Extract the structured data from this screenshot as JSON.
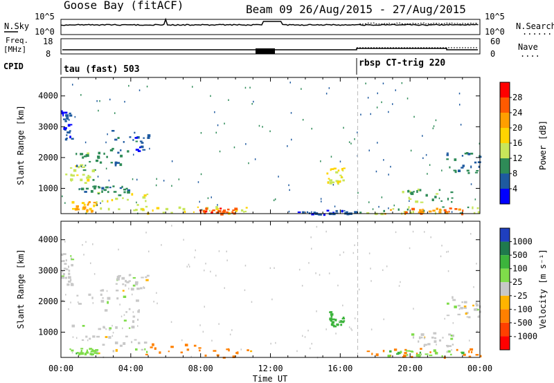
{
  "header": {
    "title": "Goose Bay (fitACF)",
    "beam_dates": "Beam 09  26/Aug/2015 - 27/Aug/2015"
  },
  "nsky": {
    "label": "N.Sky",
    "tick_top": "10^5",
    "tick_bottom": "10^0",
    "right_label": "N.Search",
    "right_top": "10^5",
    "right_bottom": "10^0",
    "right_line": "........"
  },
  "freq": {
    "label_top": "Freq.",
    "label_unit": "[MHz]",
    "tick_18": "18",
    "tick_8": "8",
    "right_label": "Nave",
    "right_60": "60",
    "right_0": "0",
    "right_line": "....",
    "cpid_label": "CPID"
  },
  "cpid": {
    "left_mode": "tau (fast) 503",
    "right_mode": "rbsp CT-trig 220"
  },
  "axes": {
    "ylabel": "Slant Range [km]",
    "xlabel": "Time UT",
    "y_ticks": [
      "1000",
      "2000",
      "3000",
      "4000"
    ],
    "x_ticks": [
      "00:00",
      "04:00",
      "08:00",
      "12:00",
      "16:00",
      "20:00",
      "00:00"
    ]
  },
  "power_colorbar": {
    "label": "Power [dB]",
    "labels": [
      "28",
      "24",
      "20",
      "16",
      "12",
      "8",
      "4"
    ],
    "colors": [
      "#ff0000",
      "#ff5a00",
      "#ff9f00",
      "#ffd400",
      "#c8e65a",
      "#2e8b57",
      "#1e5aa0",
      "#0000ff"
    ]
  },
  "velocity_colorbar": {
    "label": "Velocity [m s⁻¹]",
    "labels": [
      "1000",
      "500",
      "100",
      "25",
      "-25",
      "-100",
      "-500",
      "-1000"
    ],
    "colors": [
      "#1f3fbf",
      "#1f7a4d",
      "#3cb43c",
      "#7fdc4a",
      "#c8c8c8",
      "#ffb400",
      "#ff8000",
      "#ff4000",
      "#ff0000"
    ]
  },
  "chart_data": {
    "type": "heatmap",
    "title": "Goose Bay (fitACF)",
    "xlabel": "Time UT",
    "ylabel": "Slant Range [km]",
    "xlim": [
      0,
      24
    ],
    "ylim": [
      180,
      4600
    ],
    "mode_change_time": 17.0,
    "power_clusters": [
      {
        "t0": 0.0,
        "t1": 2.2,
        "r0": 1200,
        "r1": 1800,
        "v": 14
      },
      {
        "t0": 0.6,
        "t1": 3.4,
        "r0": 1700,
        "r1": 2200,
        "v": 10
      },
      {
        "t0": 2.8,
        "t1": 5.0,
        "r0": 2200,
        "r1": 2900,
        "v": 6
      },
      {
        "t0": 0.0,
        "t1": 0.6,
        "r0": 2500,
        "r1": 3600,
        "v": 5
      },
      {
        "t0": 0.6,
        "t1": 2.0,
        "r0": 250,
        "r1": 600,
        "v": 20
      },
      {
        "t0": 2.0,
        "t1": 5.0,
        "r0": 300,
        "r1": 900,
        "v": 14
      },
      {
        "t0": 4.5,
        "t1": 11.0,
        "r0": 200,
        "r1": 450,
        "v": 16
      },
      {
        "t0": 7.8,
        "t1": 10.0,
        "r0": 200,
        "r1": 380,
        "v": 27
      },
      {
        "t0": 1.0,
        "t1": 4.0,
        "r0": 900,
        "r1": 1100,
        "v": 9
      },
      {
        "t0": 15.2,
        "t1": 16.2,
        "r0": 1200,
        "r1": 1700,
        "v": 15
      },
      {
        "t0": 17.0,
        "t1": 24.0,
        "r0": 200,
        "r1": 450,
        "v": 12
      },
      {
        "t0": 18.5,
        "t1": 23.0,
        "r0": 200,
        "r1": 400,
        "v": 23
      },
      {
        "t0": 19.5,
        "t1": 22.5,
        "r0": 550,
        "r1": 1000,
        "v": 11
      },
      {
        "t0": 22.0,
        "t1": 24.0,
        "r0": 1500,
        "r1": 2200,
        "v": 8
      },
      {
        "t0": 13.5,
        "t1": 17.0,
        "r0": 180,
        "r1": 320,
        "v": 5
      }
    ],
    "velocity_clusters": [
      {
        "t0": 0.0,
        "t1": 4.5,
        "r0": 1100,
        "r1": 2400,
        "v": 0
      },
      {
        "t0": 3.0,
        "t1": 5.0,
        "r0": 2400,
        "r1": 2900,
        "v": 0
      },
      {
        "t0": 0.0,
        "t1": 0.6,
        "r0": 2500,
        "r1": 3600,
        "v": 0
      },
      {
        "t0": 1.0,
        "t1": 5.0,
        "r0": 300,
        "r1": 900,
        "v": 0
      },
      {
        "t0": 4.5,
        "t1": 11.0,
        "r0": 200,
        "r1": 650,
        "v": -120
      },
      {
        "t0": 0.4,
        "t1": 2.0,
        "r0": 300,
        "r1": 500,
        "v": 80
      },
      {
        "t0": 15.2,
        "t1": 16.2,
        "r0": 1200,
        "r1": 1700,
        "v": 150
      },
      {
        "t0": 17.5,
        "t1": 24.0,
        "r0": 200,
        "r1": 500,
        "v": -150
      },
      {
        "t0": 18.5,
        "t1": 23.0,
        "r0": 250,
        "r1": 450,
        "v": 80
      },
      {
        "t0": 20.0,
        "t1": 22.5,
        "r0": 550,
        "r1": 1000,
        "v": 0
      },
      {
        "t0": 22.0,
        "t1": 24.0,
        "r0": 1500,
        "r1": 2200,
        "v": 0
      }
    ]
  }
}
